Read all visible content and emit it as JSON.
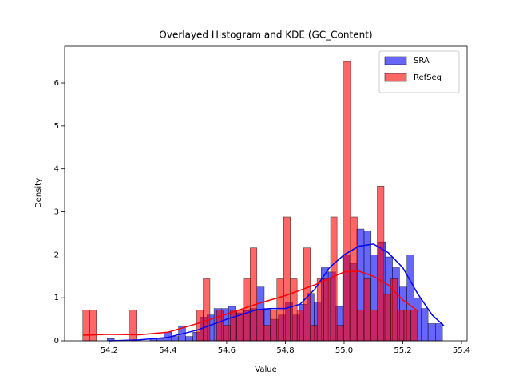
{
  "chart_data": {
    "type": "histogram",
    "title": "Overlayed Histogram and KDE (GC_Content)",
    "x_label": "Value",
    "y_label": "Density",
    "xlim": [
      54.048,
      55.419
    ],
    "ylim": [
      0,
      6.855
    ],
    "xticks": [
      54.2,
      54.4,
      54.6,
      54.8,
      {
        "value": 55,
        "label": "55.0"
      },
      55.2,
      55.4
    ],
    "yticks": [
      0,
      1,
      2,
      3,
      4,
      5,
      6
    ],
    "legend": "upper right",
    "series": [
      {
        "name": "SRA",
        "color": "#0000ff",
        "bins": [
          54.12,
          54.144,
          54.169,
          54.193,
          54.217,
          54.242,
          54.266,
          54.29,
          54.314,
          54.339,
          54.363,
          54.387,
          54.412,
          54.436,
          54.46,
          54.485,
          54.509,
          54.533,
          54.557,
          54.582,
          54.606,
          54.63,
          54.655,
          54.679,
          54.703,
          54.728,
          54.752,
          54.776,
          54.8,
          54.825,
          54.849,
          54.873,
          54.898,
          54.922,
          54.946,
          54.971,
          54.995,
          55.019,
          55.043,
          55.068,
          55.092,
          55.116,
          55.141,
          55.165,
          55.189,
          55.214,
          55.238,
          55.262,
          55.286,
          55.311,
          55.335
        ],
        "values": [
          0,
          0,
          0,
          0.05,
          0,
          0,
          0,
          0,
          0,
          0.05,
          0.05,
          0.2,
          0.1,
          0.35,
          0.1,
          0.2,
          0.55,
          0.6,
          0.75,
          0.75,
          0.8,
          0.65,
          0.7,
          0.75,
          1.25,
          0.75,
          0.5,
          0.6,
          0.9,
          0.6,
          0.85,
          1.1,
          0.9,
          1.7,
          1.6,
          0.8,
          2.0,
          1.8,
          2.6,
          2.55,
          2.0,
          2.3,
          1.95,
          1.7,
          1.25,
          2.0,
          1.0,
          0.75,
          0.4,
          0.4
        ],
        "kde_x": [
          54.2,
          54.3,
          54.4,
          54.5,
          54.6,
          54.7,
          54.75,
          54.8,
          54.85,
          54.9,
          54.95,
          55.0,
          55.05,
          55.1,
          55.15,
          55.2,
          55.25,
          55.3,
          55.34
        ],
        "kde_values": [
          0.0,
          0.02,
          0.08,
          0.25,
          0.5,
          0.72,
          0.75,
          0.75,
          0.85,
          1.2,
          1.7,
          2.0,
          2.2,
          2.25,
          2.05,
          1.7,
          1.1,
          0.6,
          0.35
        ]
      },
      {
        "name": "RefSeq",
        "color": "#ff0000",
        "bins": [
          54.11,
          54.133,
          54.156,
          54.178,
          54.201,
          54.224,
          54.247,
          54.27,
          54.292,
          54.315,
          54.338,
          54.361,
          54.384,
          54.406,
          54.429,
          54.452,
          54.475,
          54.498,
          54.52,
          54.543,
          54.566,
          54.589,
          54.612,
          54.634,
          54.657,
          54.68,
          54.703,
          54.726,
          54.748,
          54.771,
          54.794,
          54.817,
          54.84,
          54.862,
          54.885,
          54.908,
          54.931,
          54.954,
          54.976,
          54.999,
          55.022,
          55.045,
          55.068,
          55.09,
          55.113,
          55.136,
          55.159,
          55.182,
          55.204,
          55.227,
          55.25
        ],
        "values": [
          0.72,
          0.72,
          0,
          0,
          0,
          0,
          0,
          0.72,
          0,
          0,
          0,
          0,
          0,
          0,
          0,
          0,
          0,
          0.72,
          1.44,
          0,
          0.72,
          0.36,
          0.72,
          0.72,
          1.44,
          2.16,
          0.72,
          0.36,
          0.72,
          1.44,
          2.88,
          1.44,
          0.72,
          2.16,
          0.36,
          1.44,
          1.44,
          2.88,
          0.36,
          6.5,
          2.88,
          0.72,
          1.44,
          0.72,
          3.6,
          1.08,
          1.44,
          0.72,
          0.72,
          0.72
        ],
        "kde_x": [
          54.11,
          54.2,
          54.3,
          54.4,
          54.5,
          54.6,
          54.7,
          54.8,
          54.9,
          55.0,
          55.05,
          55.1,
          55.15,
          55.2,
          55.25
        ],
        "kde_values": [
          0.13,
          0.15,
          0.14,
          0.2,
          0.4,
          0.62,
          0.85,
          1.05,
          1.3,
          1.6,
          1.62,
          1.5,
          1.3,
          0.95,
          0.7
        ]
      }
    ]
  }
}
